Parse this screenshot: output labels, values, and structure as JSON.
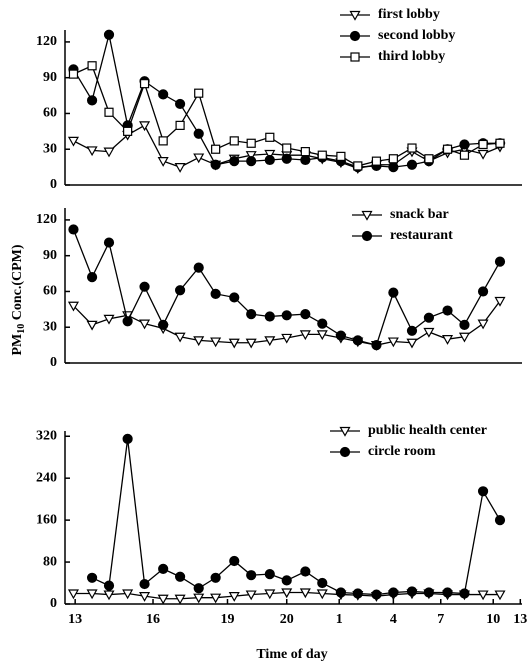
{
  "ylabel": {
    "base": "PM",
    "sub": "10",
    "rest": " Conc.(CPM)"
  },
  "xlabel": "Time of day",
  "chart_data": [
    {
      "type": "line",
      "x": [
        0.5,
        1.6,
        2.6,
        3.7,
        4.7,
        5.8,
        6.8,
        7.9,
        8.9,
        10,
        11,
        12.1,
        13.1,
        14.2,
        15.2,
        16.3,
        17.3,
        18.4,
        19.4,
        20.5,
        21.5,
        22.6,
        23.6,
        24.7,
        25.7
      ],
      "xlim": [
        0,
        27
      ],
      "ylim": [
        0,
        130
      ],
      "yticks": [
        0,
        30,
        60,
        90,
        120
      ],
      "series": [
        {
          "name": "first lobby",
          "marker": "triangle",
          "color": "#000",
          "values": [
            37,
            29,
            28,
            42,
            50,
            20,
            15,
            23,
            17,
            22,
            25,
            26,
            25,
            25,
            22,
            19,
            14,
            17,
            17,
            28,
            20,
            27,
            30,
            26,
            32
          ]
        },
        {
          "name": "second lobby",
          "marker": "circle",
          "color": "#000",
          "values": [
            97,
            71,
            126,
            50,
            87,
            76,
            68,
            43,
            17,
            20,
            20,
            21,
            22,
            21,
            23,
            20,
            15,
            16,
            15,
            17,
            20,
            30,
            34,
            35,
            35
          ]
        },
        {
          "name": "third lobby",
          "marker": "square",
          "color": "#000",
          "values": [
            93,
            100,
            61,
            45,
            85,
            37,
            50,
            77,
            30,
            37,
            35,
            40,
            31,
            28,
            25,
            24,
            16,
            20,
            22,
            31,
            22,
            30,
            25,
            34,
            35
          ]
        }
      ]
    },
    {
      "type": "line",
      "x": [
        0.5,
        1.6,
        2.6,
        3.7,
        4.7,
        5.8,
        6.8,
        7.9,
        8.9,
        10,
        11,
        12.1,
        13.1,
        14.2,
        15.2,
        16.3,
        17.3,
        18.4,
        19.4,
        20.5,
        21.5,
        22.6,
        23.6,
        24.7,
        25.7
      ],
      "xlim": [
        0,
        27
      ],
      "ylim": [
        0,
        130
      ],
      "yticks": [
        0,
        30,
        60,
        90,
        120
      ],
      "series": [
        {
          "name": "snack bar",
          "marker": "triangle",
          "color": "#000",
          "values": [
            48,
            32,
            37,
            40,
            33,
            29,
            22,
            19,
            18,
            17,
            17,
            19,
            21,
            24,
            24,
            21,
            18,
            15,
            18,
            17,
            26,
            20,
            22,
            33,
            52
          ]
        },
        {
          "name": "restaurant",
          "marker": "circle",
          "color": "#000",
          "values": [
            112,
            72,
            101,
            35,
            64,
            32,
            61,
            80,
            58,
            55,
            41,
            39,
            40,
            41,
            33,
            23,
            19,
            15,
            59,
            27,
            38,
            44,
            32,
            60,
            85
          ]
        }
      ]
    },
    {
      "type": "line",
      "x": [
        0.5,
        1.6,
        2.6,
        3.7,
        4.7,
        5.8,
        6.8,
        7.9,
        8.9,
        10,
        11,
        12.1,
        13.1,
        14.2,
        15.2,
        16.3,
        17.3,
        18.4,
        19.4,
        20.5,
        21.5,
        22.6,
        23.6,
        24.7,
        25.7
      ],
      "xlim": [
        0,
        27
      ],
      "ylim": [
        0,
        330
      ],
      "yticks": [
        0,
        80,
        160,
        240,
        320
      ],
      "xticks": [
        {
          "value": 0.6,
          "label": "13"
        },
        {
          "value": 5.2,
          "label": "16"
        },
        {
          "value": 9.6,
          "label": "19"
        },
        {
          "value": 13.1,
          "label": "20"
        },
        {
          "value": 16.2,
          "label": "1"
        },
        {
          "value": 19.4,
          "label": "4"
        },
        {
          "value": 22.2,
          "label": "7"
        },
        {
          "value": 25.3,
          "label": "10"
        },
        {
          "value": 26.9,
          "label": "13"
        }
      ],
      "series": [
        {
          "name": "public health center",
          "marker": "triangle",
          "color": "#000",
          "values": [
            20,
            20,
            18,
            20,
            15,
            10,
            10,
            12,
            12,
            15,
            18,
            20,
            22,
            22,
            20,
            18,
            17,
            15,
            18,
            20,
            20,
            18,
            18,
            18,
            18
          ]
        },
        {
          "name": "circle room",
          "marker": "circle",
          "color": "#000",
          "values": [
            null,
            50,
            35,
            315,
            38,
            67,
            52,
            30,
            50,
            82,
            55,
            57,
            45,
            62,
            40,
            22,
            20,
            18,
            22,
            24,
            22,
            22,
            20,
            215,
            160
          ]
        }
      ]
    }
  ]
}
